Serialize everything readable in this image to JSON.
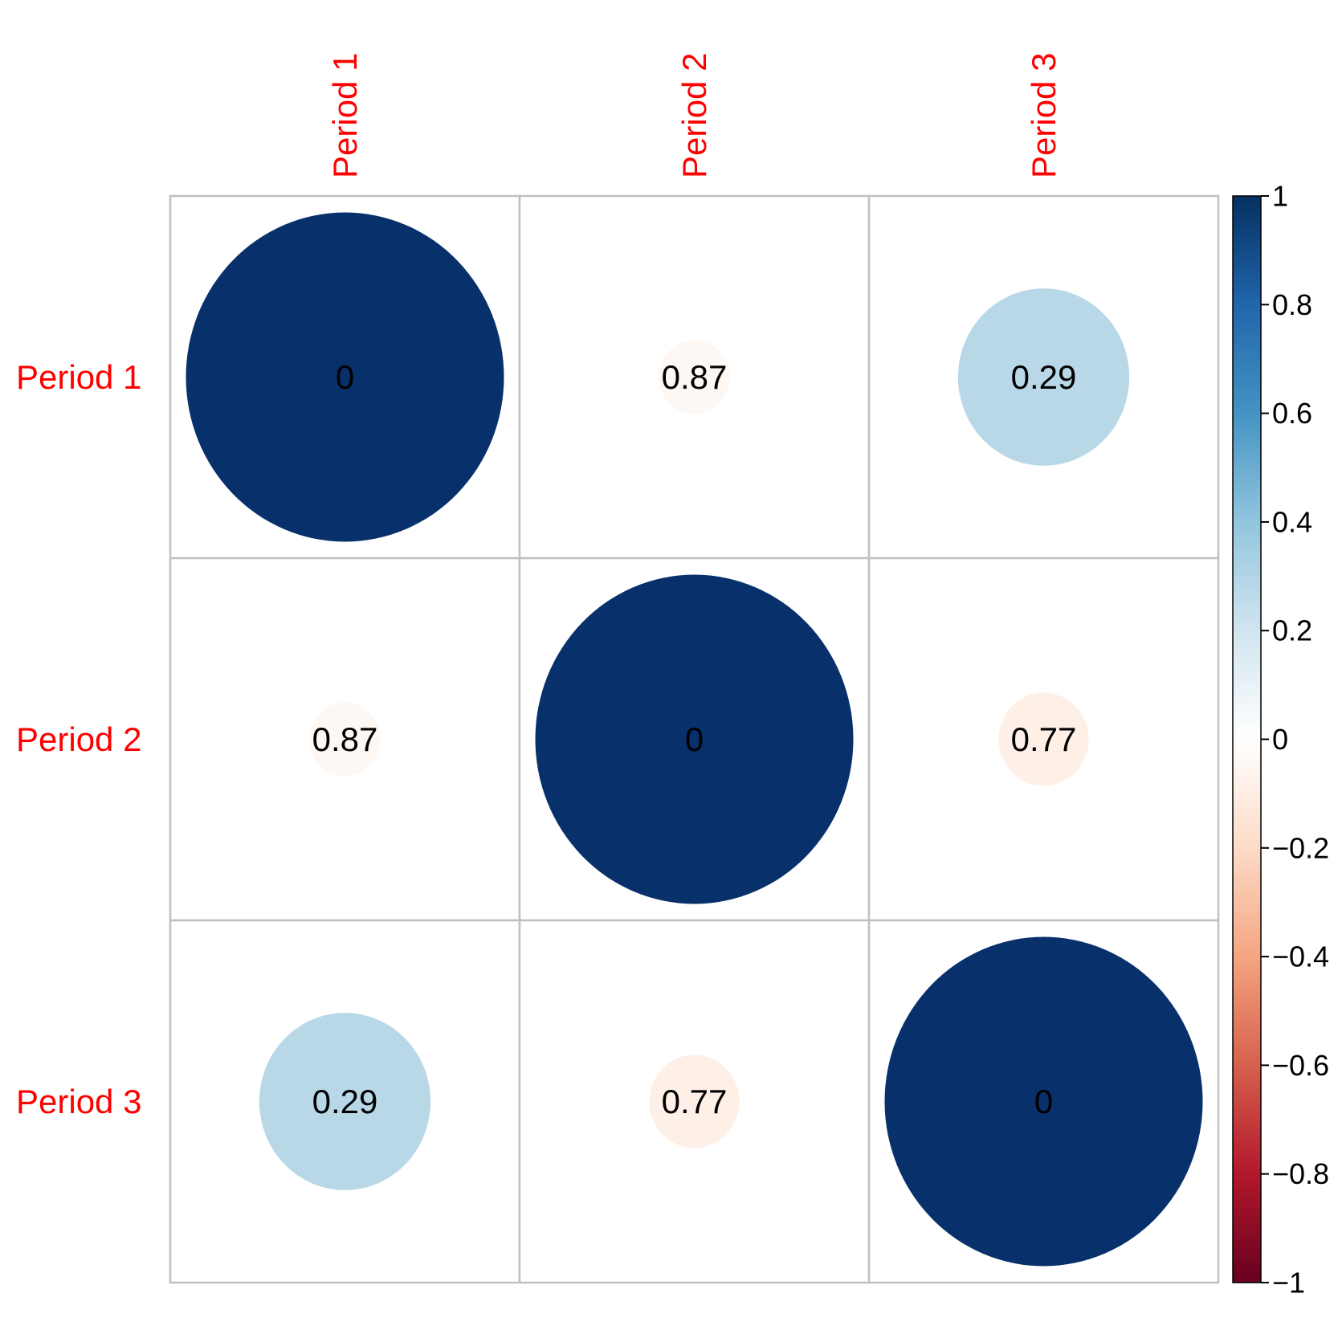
{
  "chart_data": {
    "type": "heatmap",
    "style": "correlation-circles",
    "rows": [
      "Period 1",
      "Period 2",
      "Period 3"
    ],
    "cols": [
      "Period 1",
      "Period 2",
      "Period 3"
    ],
    "colors": [
      [
        "#08306B",
        "#FEF8F5",
        "#B8D8E8"
      ],
      [
        "#FEF8F5",
        "#08306B",
        "#FEEFE7"
      ],
      [
        "#B8D8E8",
        "#FEEFE7",
        "#08306B"
      ]
    ],
    "magnitudes": [
      [
        1.0,
        0.05,
        0.29
      ],
      [
        0.05,
        1.0,
        0.08
      ],
      [
        0.29,
        0.08,
        1.0
      ]
    ],
    "cell_labels": [
      [
        "0",
        "0.87",
        "0.29"
      ],
      [
        "0.87",
        "0",
        "0.77"
      ],
      [
        "0.29",
        "0.77",
        "0"
      ]
    ],
    "colorbar": {
      "range": [
        -1,
        1
      ],
      "ticks": [
        "1",
        "0.8",
        "0.6",
        "0.4",
        "0.2",
        "0",
        "−0.2",
        "−0.4",
        "−0.6",
        "−0.8",
        "−1"
      ],
      "tick_values": [
        1,
        0.8,
        0.6,
        0.4,
        0.2,
        0,
        -0.2,
        -0.4,
        -0.6,
        -0.8,
        -1
      ]
    },
    "label_color": "#FF0000",
    "grid_color": "#C0C0C0",
    "colormap": [
      "#67001F",
      "#B2182B",
      "#D6604D",
      "#F4A582",
      "#FDDBC7",
      "#FFFFFF",
      "#D1E5F0",
      "#92C5DE",
      "#4393C3",
      "#2166AC",
      "#053061"
    ]
  }
}
